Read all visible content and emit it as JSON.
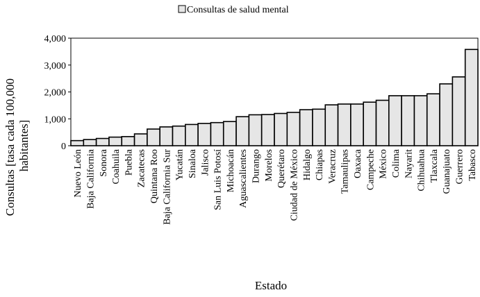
{
  "chart_data": {
    "type": "bar",
    "title": "",
    "legend": [
      {
        "label": "Consultas de salud mental",
        "color": "#e6e6e6"
      }
    ],
    "legend_position": "top",
    "xlabel": "Estado",
    "ylabel_lines": [
      "Consultas [tasa cada 100,000",
      "habitantes]"
    ],
    "ylim": [
      0,
      4000
    ],
    "yticks": [
      0,
      1000,
      2000,
      3000,
      4000
    ],
    "ytick_labels": [
      "0",
      "1,000",
      "2,000",
      "3,000",
      "4,000"
    ],
    "grid": false,
    "bar_fill": "#e6e6e6",
    "bar_stroke": "#000000",
    "categories": [
      "Nuevo León",
      "Baja California",
      "Sonora",
      "Coahuila",
      "Puebla",
      "Zacatecas",
      "Quintana Roo",
      "Baja California Sur",
      "Yucatán",
      "Sinaloa",
      "Jalisco",
      "San Luis Potosí",
      "Michoacán",
      "Aguascalientes",
      "Durango",
      "Morelos",
      "Querétaro",
      "Ciudad de México",
      "Hidalgo",
      "Chiapas",
      "Veracruz",
      "Tamaulipas",
      "Oaxaca",
      "Campeche",
      "México",
      "Colima",
      "Nayarit",
      "Chihuahua",
      "Tlaxcala",
      "Guanajuato",
      "Guerrero",
      "Tabasco"
    ],
    "values": [
      190,
      230,
      270,
      320,
      340,
      440,
      620,
      700,
      730,
      790,
      830,
      860,
      900,
      1080,
      1150,
      1160,
      1200,
      1240,
      1340,
      1360,
      1520,
      1550,
      1550,
      1620,
      1690,
      1860,
      1860,
      1860,
      1930,
      2300,
      2560,
      3580
    ]
  }
}
